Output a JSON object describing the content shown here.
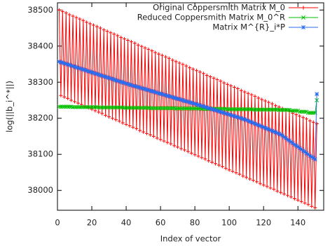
{
  "chart_data": {
    "type": "line",
    "xlabel": "Index of vector",
    "ylabel": "log(||b_i^*||)",
    "xlim": [
      0,
      155
    ],
    "xticks": [
      0,
      20,
      40,
      60,
      80,
      100,
      120,
      140
    ],
    "ylim": [
      37945,
      38520
    ],
    "yticks": [
      38000,
      38100,
      38200,
      38300,
      38400,
      38500
    ],
    "legend": "top-right",
    "x": [
      1,
      2,
      3,
      4,
      5,
      6,
      7,
      8,
      9,
      10,
      11,
      12,
      13,
      14,
      15,
      16,
      17,
      18,
      19,
      20,
      21,
      22,
      23,
      24,
      25,
      26,
      27,
      28,
      29,
      30,
      31,
      32,
      33,
      34,
      35,
      36,
      37,
      38,
      39,
      40,
      41,
      42,
      43,
      44,
      45,
      46,
      47,
      48,
      49,
      50,
      51,
      52,
      53,
      54,
      55,
      56,
      57,
      58,
      59,
      60,
      61,
      62,
      63,
      64,
      65,
      66,
      67,
      68,
      69,
      70,
      71,
      72,
      73,
      74,
      75,
      76,
      77,
      78,
      79,
      80,
      81,
      82,
      83,
      84,
      85,
      86,
      87,
      88,
      89,
      90,
      91,
      92,
      93,
      94,
      95,
      96,
      97,
      98,
      99,
      100,
      101,
      102,
      103,
      104,
      105,
      106,
      107,
      108,
      109,
      110,
      111,
      112,
      113,
      114,
      115,
      116,
      117,
      118,
      119,
      120,
      121,
      122,
      123,
      124,
      125,
      126,
      127,
      128,
      129,
      130,
      131,
      132,
      133,
      134,
      135,
      136,
      137,
      138,
      139,
      140,
      141,
      142,
      143,
      144,
      145,
      146,
      147,
      148,
      149,
      150,
      151
    ],
    "series": [
      {
        "name": "Original Coppersmith Matrix M_0",
        "color": "#ff0000",
        "marker": "plus",
        "values": [
          38500,
          38263,
          38496,
          38259,
          38492,
          38255,
          38487,
          38250,
          38483,
          38246,
          38479,
          38242,
          38475,
          38238,
          38471,
          38234,
          38466,
          38229,
          38462,
          38225,
          38458,
          38221,
          38454,
          38217,
          38450,
          38213,
          38445,
          38208,
          38441,
          38204,
          38437,
          38200,
          38433,
          38196,
          38429,
          38192,
          38424,
          38187,
          38420,
          38183,
          38416,
          38179,
          38412,
          38175,
          38408,
          38171,
          38403,
          38166,
          38399,
          38162,
          38395,
          38158,
          38391,
          38154,
          38387,
          38150,
          38382,
          38145,
          38378,
          38141,
          38374,
          38137,
          38370,
          38133,
          38366,
          38129,
          38361,
          38124,
          38357,
          38120,
          38353,
          38116,
          38349,
          38112,
          38345,
          38108,
          38340,
          38103,
          38336,
          38099,
          38332,
          38095,
          38328,
          38091,
          38324,
          38087,
          38319,
          38082,
          38315,
          38078,
          38311,
          38074,
          38307,
          38070,
          38303,
          38066,
          38298,
          38061,
          38294,
          38057,
          38290,
          38053,
          38286,
          38049,
          38282,
          38045,
          38277,
          38040,
          38273,
          38036,
          38269,
          38032,
          38265,
          38028,
          38261,
          38024,
          38256,
          38019,
          38252,
          38015,
          38248,
          38011,
          38244,
          38007,
          38240,
          38003,
          38235,
          37998,
          38231,
          37994,
          38227,
          37990,
          38223,
          37986,
          38219,
          37982,
          38214,
          37977,
          38210,
          37973,
          38206,
          37969,
          38202,
          37965,
          38198,
          37961,
          38193,
          37956,
          38189,
          37952,
          38185
        ]
      },
      {
        "name": "Reduced Coppersmith Matrix M_0^R",
        "color": "#00c000",
        "marker": "cross",
        "values": [
          38232,
          38232,
          38232,
          38232,
          38232,
          38232,
          38232,
          38232,
          38231,
          38231,
          38231,
          38231,
          38231,
          38231,
          38231,
          38231,
          38231,
          38231,
          38231,
          38231,
          38231,
          38231,
          38231,
          38230,
          38230,
          38230,
          38230,
          38230,
          38230,
          38230,
          38230,
          38230,
          38230,
          38230,
          38230,
          38230,
          38230,
          38230,
          38229,
          38229,
          38229,
          38229,
          38229,
          38229,
          38229,
          38229,
          38229,
          38229,
          38229,
          38229,
          38229,
          38229,
          38229,
          38228,
          38228,
          38228,
          38228,
          38228,
          38228,
          38228,
          38228,
          38228,
          38228,
          38228,
          38228,
          38228,
          38228,
          38228,
          38227,
          38227,
          38227,
          38227,
          38227,
          38227,
          38227,
          38227,
          38227,
          38227,
          38227,
          38227,
          38227,
          38227,
          38227,
          38226,
          38226,
          38226,
          38226,
          38226,
          38226,
          38226,
          38226,
          38226,
          38226,
          38226,
          38226,
          38226,
          38226,
          38226,
          38225,
          38225,
          38225,
          38225,
          38225,
          38225,
          38225,
          38225,
          38225,
          38225,
          38225,
          38225,
          38225,
          38225,
          38225,
          38224,
          38224,
          38224,
          38224,
          38224,
          38224,
          38224,
          38224,
          38224,
          38224,
          38224,
          38224,
          38224,
          38224,
          38224,
          38223,
          38223,
          38223,
          38223,
          38223,
          38223,
          38223,
          38221,
          38221,
          38221,
          38221,
          38221,
          38218,
          38218,
          38218,
          38218,
          38218,
          38215,
          38215,
          38215,
          38215,
          38215,
          38250
        ]
      },
      {
        "name": "Matrix M^{R}_i*P",
        "color": "#2a6cf0",
        "marker": "star",
        "values": [
          38357,
          38355,
          38354,
          38352,
          38351,
          38349,
          38348,
          38346,
          38344,
          38343,
          38341,
          38340,
          38338,
          38337,
          38335,
          38334,
          38332,
          38330,
          38329,
          38327,
          38326,
          38324,
          38323,
          38321,
          38319,
          38318,
          38316,
          38315,
          38313,
          38312,
          38310,
          38309,
          38307,
          38305,
          38304,
          38302,
          38301,
          38299,
          38298,
          38296,
          38295,
          38293,
          38292,
          38290,
          38289,
          38288,
          38286,
          38285,
          38283,
          38282,
          38281,
          38279,
          38278,
          38276,
          38275,
          38274,
          38272,
          38271,
          38269,
          38268,
          38267,
          38265,
          38264,
          38262,
          38261,
          38260,
          38258,
          38257,
          38255,
          38254,
          38253,
          38251,
          38250,
          38248,
          38247,
          38246,
          38244,
          38243,
          38241,
          38240,
          38239,
          38237,
          38236,
          38234,
          38233,
          38231,
          38230,
          38228,
          38227,
          38225,
          38224,
          38222,
          38221,
          38219,
          38218,
          38216,
          38215,
          38213,
          38212,
          38210,
          38209,
          38207,
          38206,
          38204,
          38203,
          38201,
          38200,
          38198,
          38197,
          38195,
          38193,
          38191,
          38189,
          38187,
          38185,
          38183,
          38181,
          38179,
          38177,
          38175,
          38173,
          38171,
          38169,
          38167,
          38165,
          38163,
          38161,
          38159,
          38157,
          38155,
          38152,
          38148,
          38145,
          38141,
          38138,
          38134,
          38131,
          38127,
          38124,
          38121,
          38117,
          38114,
          38110,
          38107,
          38103,
          38100,
          38096,
          38093,
          38090,
          38086,
          38267
        ]
      }
    ]
  }
}
